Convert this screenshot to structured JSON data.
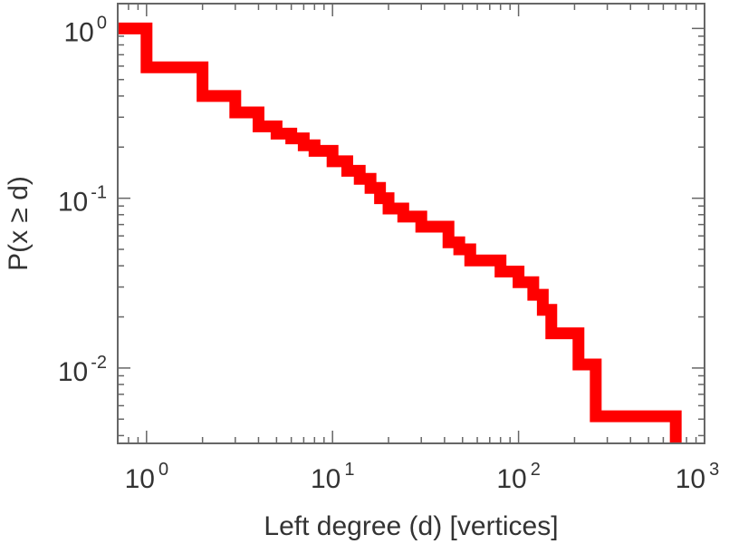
{
  "chart_data": {
    "type": "line",
    "step": true,
    "xscale": "log",
    "yscale": "log",
    "xlabel": "Left degree (d) [vertices]",
    "ylabel": "P(x ≥ d)",
    "xlim": [
      0.7,
      1000
    ],
    "ylim": [
      0.0036,
      1.4
    ],
    "x_ticks": [
      {
        "base": "10",
        "exp": "0",
        "value": 1
      },
      {
        "base": "10",
        "exp": "1",
        "value": 10
      },
      {
        "base": "10",
        "exp": "2",
        "value": 100
      },
      {
        "base": "10",
        "exp": "3",
        "value": 1000
      }
    ],
    "y_ticks": [
      {
        "base": "10",
        "exp": "0",
        "value": 1
      },
      {
        "base": "10",
        "exp": "-1",
        "value": 0.1
      },
      {
        "base": "10",
        "exp": "-2",
        "value": 0.01
      }
    ],
    "grid": false,
    "series": [
      {
        "color": "#ff0000",
        "points": [
          [
            0.7,
            1.0
          ],
          [
            1,
            0.59
          ],
          [
            2,
            0.4
          ],
          [
            3,
            0.32
          ],
          [
            4,
            0.265
          ],
          [
            5,
            0.24
          ],
          [
            6,
            0.225
          ],
          [
            7,
            0.205
          ],
          [
            8,
            0.19
          ],
          [
            10,
            0.165
          ],
          [
            12,
            0.145
          ],
          [
            14,
            0.13
          ],
          [
            16,
            0.115
          ],
          [
            18,
            0.1
          ],
          [
            20,
            0.087
          ],
          [
            24,
            0.078
          ],
          [
            30,
            0.068
          ],
          [
            42,
            0.055
          ],
          [
            48,
            0.05
          ],
          [
            55,
            0.043
          ],
          [
            80,
            0.037
          ],
          [
            100,
            0.032
          ],
          [
            120,
            0.027
          ],
          [
            135,
            0.022
          ],
          [
            150,
            0.016
          ],
          [
            210,
            0.0105
          ],
          [
            260,
            0.0052
          ],
          [
            700,
            0.0036
          ]
        ]
      }
    ]
  }
}
